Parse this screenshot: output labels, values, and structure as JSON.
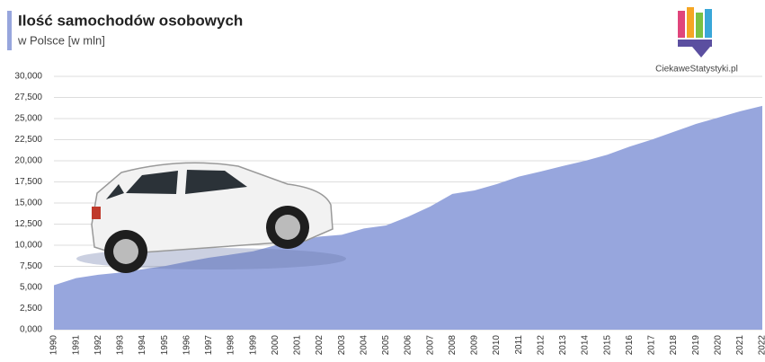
{
  "chart_data": {
    "type": "area",
    "title": "Ilość samochodów osobowych",
    "subtitle": "w Polsce [w mln]",
    "source": "CiekaweStatystyki.pl",
    "categories": [
      "1990",
      "1991",
      "1992",
      "1993",
      "1994",
      "1995",
      "1996",
      "1997",
      "1998",
      "1999",
      "2000",
      "2001",
      "2002",
      "2003",
      "2004",
      "2005",
      "2006",
      "2007",
      "2008",
      "2009",
      "2010",
      "2011",
      "2012",
      "2013",
      "2014",
      "2015",
      "2016",
      "2017",
      "2018",
      "2019",
      "2020",
      "2021",
      "2022"
    ],
    "values": [
      5.26,
      6.11,
      6.5,
      6.77,
      7.15,
      7.52,
      8.05,
      8.53,
      8.89,
      9.28,
      9.99,
      10.5,
      11.03,
      11.24,
      11.98,
      12.34,
      13.38,
      14.59,
      16.08,
      16.49,
      17.24,
      18.13,
      18.74,
      19.39,
      20.0,
      20.72,
      21.68,
      22.5,
      23.43,
      24.36,
      25.11,
      25.87,
      26.5
    ],
    "color": "#97a6dd",
    "ylim": [
      0,
      30
    ],
    "yticks": [
      {
        "value": 0,
        "label": "0,000"
      },
      {
        "value": 2.5,
        "label": "2,500"
      },
      {
        "value": 5,
        "label": "5,000"
      },
      {
        "value": 7.5,
        "label": "7,500"
      },
      {
        "value": 10,
        "label": "10,000"
      },
      {
        "value": 12.5,
        "label": "12,500"
      },
      {
        "value": 15,
        "label": "15,000"
      },
      {
        "value": 17.5,
        "label": "17,500"
      },
      {
        "value": 20,
        "label": "20,000"
      },
      {
        "value": 22.5,
        "label": "22,500"
      },
      {
        "value": 25,
        "label": "25,000"
      },
      {
        "value": 27.5,
        "label": "27,500"
      },
      {
        "value": 30,
        "label": "30,000"
      }
    ],
    "grid": true
  }
}
